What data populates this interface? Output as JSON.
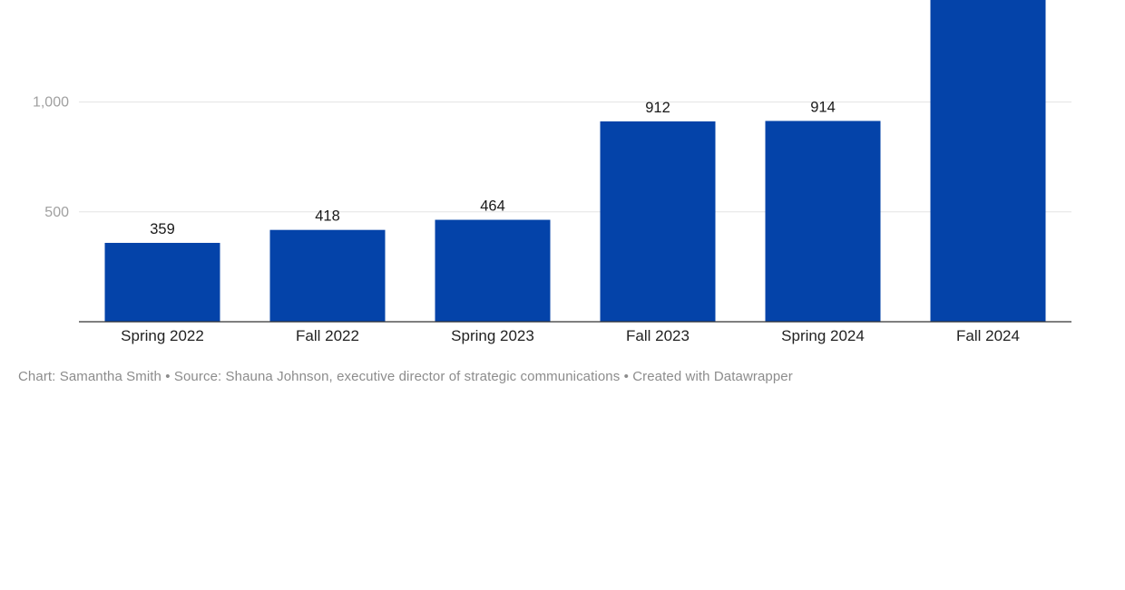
{
  "chart_data": {
    "type": "bar",
    "categories": [
      "Spring 2022",
      "Fall 2022",
      "Spring 2023",
      "Fall 2023",
      "Spring 2024",
      "Fall 2024"
    ],
    "values": [
      359,
      418,
      464,
      912,
      914,
      null
    ],
    "data_labels": [
      "359",
      "418",
      "464",
      "912",
      "914",
      ""
    ],
    "y_ticks": [
      500,
      1000
    ],
    "y_tick_labels": [
      "500",
      "1,000"
    ],
    "ylim": [
      0,
      1445
    ],
    "grid": true,
    "bar_color": "#0443a9"
  },
  "footer": {
    "text": "Chart: Samantha Smith • Source: Shauna Johnson, executive director of strategic communications • Created with Datawrapper"
  }
}
